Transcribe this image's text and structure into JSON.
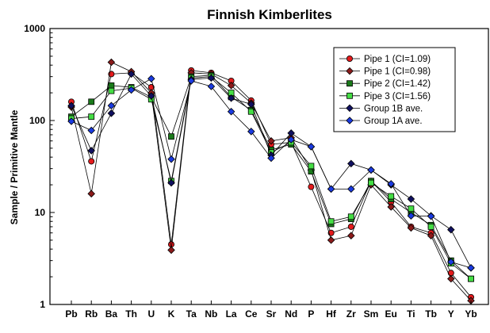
{
  "chart_data": {
    "type": "line",
    "title": "Finnish Kimberlites",
    "xlabel": "",
    "ylabel": "Sample / Primitive Mantle",
    "yscale": "log",
    "ylim": [
      1,
      1000
    ],
    "yticks": [
      1,
      10,
      100,
      1000
    ],
    "grid": false,
    "legend_position": "top-right",
    "categories": [
      "Pb",
      "Rb",
      "Ba",
      "Th",
      "U",
      "K",
      "Ta",
      "Nb",
      "La",
      "Ce",
      "Sr",
      "Nd",
      "P",
      "Hf",
      "Zr",
      "Sm",
      "Eu",
      "Ti",
      "Tb",
      "Y",
      "Yb"
    ],
    "series": [
      {
        "name": "Pipe 1 (CI=1.09)",
        "color": "#e41a1c",
        "marker": "circle",
        "values": [
          160,
          36,
          320,
          330,
          230,
          4.5,
          350,
          330,
          270,
          165,
          55,
          58,
          19,
          6,
          7,
          22,
          13,
          7,
          6,
          2.2,
          1.2
        ]
      },
      {
        "name": "Pipe 1 (CI=0.98)",
        "color": "#8b1a1a",
        "marker": "diamond",
        "values": [
          140,
          16,
          430,
          340,
          200,
          3.9,
          330,
          320,
          240,
          155,
          60,
          65,
          29,
          5,
          5.6,
          20,
          11.5,
          6.8,
          5.6,
          1.9,
          1.1
        ]
      },
      {
        "name": "Pipe 2 (CI=1.42)",
        "color": "#1a7a1a",
        "marker": "square",
        "values": [
          110,
          160,
          240,
          230,
          180,
          67,
          300,
          310,
          180,
          130,
          48,
          55,
          28,
          7.5,
          8.5,
          22,
          14,
          10,
          7.3,
          3,
          1.9
        ]
      },
      {
        "name": "Pipe 3 (CI=1.56)",
        "color": "#44dd44",
        "marker": "square",
        "values": [
          105,
          110,
          210,
          225,
          170,
          22,
          290,
          300,
          200,
          125,
          45,
          58,
          32,
          8,
          9,
          21,
          15,
          11,
          7,
          2.8,
          1.9
        ]
      },
      {
        "name": "Group 1B ave.",
        "color": "#101060",
        "marker": "diamond",
        "values": [
          145,
          47,
          120,
          320,
          185,
          21,
          280,
          290,
          175,
          150,
          42,
          73,
          52,
          18,
          34,
          29,
          20,
          14,
          9.2,
          6.5,
          2.5
        ]
      },
      {
        "name": "Group 1A ave.",
        "color": "#1a3ae0",
        "marker": "diamond",
        "values": [
          98,
          78,
          145,
          215,
          285,
          38,
          270,
          235,
          125,
          76,
          39,
          62,
          52,
          18,
          18,
          29,
          20.5,
          9.2,
          9.1,
          2.9,
          2.5
        ]
      }
    ]
  }
}
